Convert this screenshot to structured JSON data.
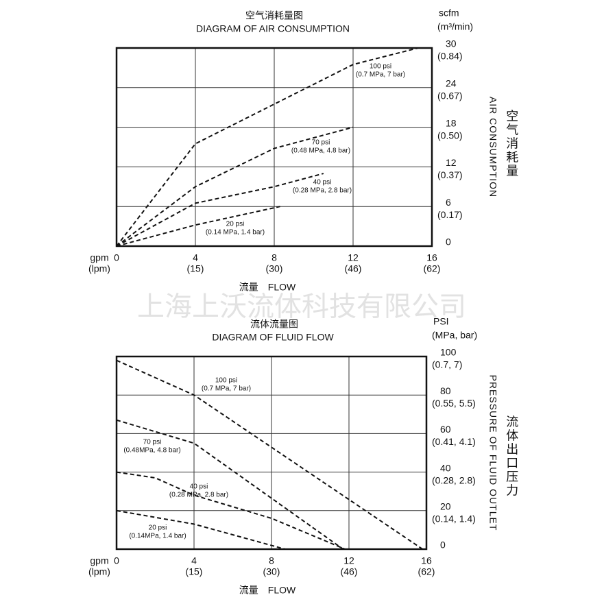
{
  "watermark": "上海上沃流体科技有限公司",
  "chart_data": [
    {
      "type": "line",
      "title": "空气消耗量图",
      "subtitle": "DIAGRAM OF AIR CONSUMPTION",
      "y_unit": "scfm",
      "y_unit_metric": "(m³/min)",
      "x_unit": "gpm",
      "x_unit_metric": "(lpm)",
      "xlabel": "流量　FLOW",
      "ylabel": "AIR CONSUMPTION",
      "ylabel_cn": "空气消耗量",
      "xlim": [
        0,
        16
      ],
      "ylim": [
        0,
        30
      ],
      "grid": true,
      "color": "#111111",
      "xticks": [
        {
          "value": 0,
          "label": "0"
        },
        {
          "value": 4,
          "label": "4",
          "metric": "(15)"
        },
        {
          "value": 8,
          "label": "8",
          "metric": "(30)"
        },
        {
          "value": 12,
          "label": "12",
          "metric": "(46)"
        },
        {
          "value": 16,
          "label": "16",
          "metric": "(62)"
        }
      ],
      "yticks": [
        {
          "value": 0,
          "label": "0"
        },
        {
          "value": 6,
          "label": "6",
          "metric": "(0.17)"
        },
        {
          "value": 12,
          "label": "12",
          "metric": "(0.37)"
        },
        {
          "value": 18,
          "label": "18",
          "metric": "(0.50)"
        },
        {
          "value": 24,
          "label": "24",
          "metric": "(0.67)"
        },
        {
          "value": 30,
          "label": "30",
          "metric": "(0.84)"
        }
      ],
      "series": [
        {
          "name": "100 psi",
          "note": "(0.7 MPa, 7 bar)",
          "x": [
            0,
            4,
            12,
            15.3
          ],
          "values": [
            0,
            15.5,
            27.5,
            30
          ]
        },
        {
          "name": "70 psi",
          "note": "(0.48 MPa, 4.8 bar)",
          "x": [
            0,
            4,
            8,
            12
          ],
          "values": [
            0,
            9,
            14.8,
            18
          ]
        },
        {
          "name": "40 psi",
          "note": "(0.28 MPa, 2.8 bar)",
          "x": [
            0,
            4,
            8,
            10.5
          ],
          "values": [
            0,
            6.5,
            9,
            11
          ]
        },
        {
          "name": "20 psi",
          "note": "(0.14 MPa, 1.4 bar)",
          "x": [
            0,
            4,
            8.3
          ],
          "values": [
            0,
            3.2,
            6
          ]
        }
      ]
    },
    {
      "type": "line",
      "title": "流体流量图",
      "subtitle": "DIAGRAM OF FLUID FLOW",
      "y_unit": "PSI",
      "y_unit_metric": "(MPa, bar)",
      "x_unit": "gpm",
      "x_unit_metric": "(lpm)",
      "xlabel": "流量　FLOW",
      "ylabel": "PRESSURE OF FLUID OUTLET",
      "ylabel_cn": "流体出口压力",
      "xlim": [
        0,
        16
      ],
      "ylim": [
        0,
        100
      ],
      "grid": true,
      "color": "#111111",
      "xticks": [
        {
          "value": 0,
          "label": "0"
        },
        {
          "value": 4,
          "label": "4",
          "metric": "(15)"
        },
        {
          "value": 8,
          "label": "8",
          "metric": "(30)"
        },
        {
          "value": 12,
          "label": "12",
          "metric": "(46)"
        },
        {
          "value": 16,
          "label": "16",
          "metric": "(62)"
        }
      ],
      "yticks": [
        {
          "value": 0,
          "label": "0"
        },
        {
          "value": 20,
          "label": "20",
          "metric": "(0.14, 1.4)"
        },
        {
          "value": 40,
          "label": "40",
          "metric": "(0.28, 2.8)"
        },
        {
          "value": 60,
          "label": "60",
          "metric": "(0.41, 4.1)"
        },
        {
          "value": 80,
          "label": "80",
          "metric": "(0.55, 5.5)"
        },
        {
          "value": 100,
          "label": "100",
          "metric": "(0.7, 7)"
        }
      ],
      "series": [
        {
          "name": "100 psi",
          "note": "(0.7 MPa, 7 bar)",
          "x": [
            0,
            4,
            15.8
          ],
          "values": [
            98,
            80,
            0
          ]
        },
        {
          "name": "70 psi",
          "note": "(0.48MPa, 4.8 bar)",
          "x": [
            0,
            4,
            11.7
          ],
          "values": [
            67,
            55,
            0
          ]
        },
        {
          "name": "40 psi",
          "note": "(0.28 MPa, 2.8 bar)",
          "x": [
            0,
            2,
            4,
            8,
            11.8
          ],
          "values": [
            40,
            37,
            28,
            16,
            0
          ]
        },
        {
          "name": "20 psi",
          "note": "(0.14MPa, 1.4 bar)",
          "x": [
            0,
            4,
            8.7
          ],
          "values": [
            20,
            13,
            0
          ]
        }
      ]
    }
  ]
}
